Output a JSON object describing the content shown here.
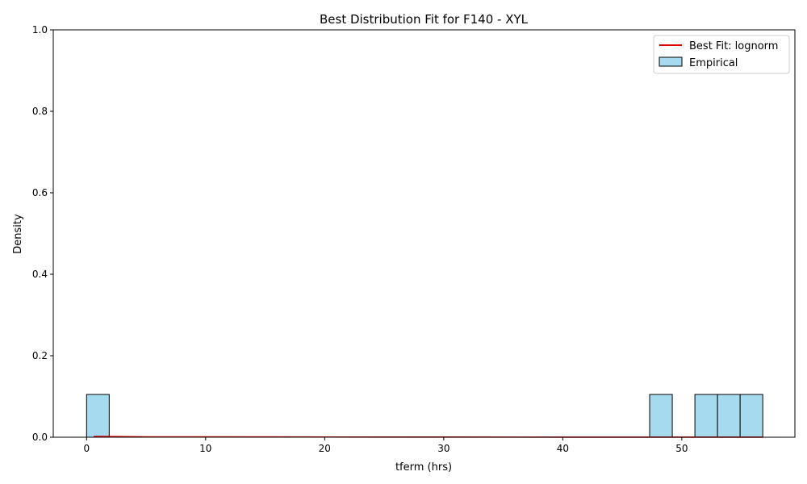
{
  "chart_data": {
    "type": "bar",
    "title": "Best Distribution Fit for F140 - XYL",
    "xlabel": "tferm (hrs)",
    "ylabel": "Density",
    "xlim": [
      -2.8,
      59.5
    ],
    "ylim": [
      0,
      1
    ],
    "xticks": [
      0,
      10,
      20,
      30,
      40,
      50
    ],
    "yticks": [
      0.0,
      0.2,
      0.4,
      0.6,
      0.8,
      1.0
    ],
    "ytick_labels": [
      "0.0",
      "0.2",
      "0.4",
      "0.6",
      "0.8",
      "1.0"
    ],
    "grid": false,
    "legend_position": "top-right",
    "histogram": {
      "name": "Empirical",
      "color": "#a6dbef",
      "edgecolor": "#000000",
      "bins": [
        {
          "x0": 0.0,
          "x1": 1.9,
          "density": 0.105
        },
        {
          "x0": 47.3,
          "x1": 49.2,
          "density": 0.105
        },
        {
          "x0": 51.1,
          "x1": 53.0,
          "density": 0.105
        },
        {
          "x0": 53.0,
          "x1": 54.9,
          "density": 0.105
        },
        {
          "x0": 54.9,
          "x1": 56.8,
          "density": 0.105
        }
      ]
    },
    "fit_line": {
      "name": "Best Fit: lognorm",
      "color": "#e00000",
      "x": [
        0.6,
        5,
        10,
        20,
        30,
        40,
        50,
        56.8
      ],
      "y": [
        0.002,
        0.001,
        0.001,
        0.0005,
        0.0003,
        0.0002,
        0.0001,
        0.0001
      ]
    }
  }
}
